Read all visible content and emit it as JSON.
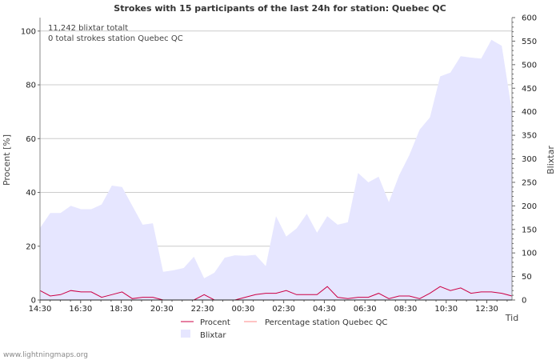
{
  "chart_data": {
    "type": "area",
    "title": "Strokes with 15 participants of the last 24h for station: Quebec QC",
    "info_lines": [
      "11,242 blixtar totalt",
      "0 total strokes station Quebec QC"
    ],
    "xlabel": "Tid",
    "ylabel_left": "Procent   [%]",
    "ylabel_right": "Blixtar",
    "ylim_left": [
      0,
      105
    ],
    "ylim_right": [
      0,
      600
    ],
    "yticks_left": [
      "0",
      "20",
      "40",
      "60",
      "80",
      "100"
    ],
    "yticks_right": [
      "0",
      "50",
      "100",
      "150",
      "200",
      "250",
      "300",
      "350",
      "400",
      "450",
      "500",
      "550",
      "600"
    ],
    "x_tick_labels": [
      "14:30",
      "16:30",
      "18:30",
      "20:30",
      "22:30",
      "00:30",
      "02:30",
      "04:30",
      "06:30",
      "08:30",
      "10:30",
      "12:30"
    ],
    "series": [
      {
        "name": "Blixtar",
        "axis": "right",
        "color": "#e6e6ff",
        "values": [
          153,
          185,
          185,
          200,
          193,
          193,
          203,
          243,
          240,
          200,
          160,
          163,
          60,
          63,
          68,
          92,
          46,
          58,
          90,
          95,
          94,
          96,
          72,
          178,
          135,
          152,
          183,
          143,
          178,
          160,
          165,
          270,
          250,
          262,
          208,
          265,
          308,
          362,
          388,
          475,
          483,
          518,
          515,
          513,
          553,
          540,
          400
        ]
      },
      {
        "name": "Procent",
        "axis": "left",
        "color": "#cc0044",
        "values": [
          3.5,
          1.5,
          2,
          3.5,
          3,
          3,
          1,
          2,
          3,
          0.5,
          1,
          1,
          0,
          0,
          0,
          0,
          2,
          0,
          0,
          0,
          1,
          2,
          2.5,
          2.5,
          3.5,
          2,
          2,
          2,
          5,
          1,
          0.5,
          1,
          1,
          2.5,
          0.5,
          1.5,
          1.5,
          0.5,
          2.5,
          5,
          3.5,
          4.5,
          2.5,
          3,
          3,
          2.5,
          1.5
        ]
      },
      {
        "name": "Percentage station Quebec QC",
        "axis": "left",
        "color": "#ff8888",
        "values": []
      }
    ]
  },
  "footer": "www.lightningmaps.org"
}
